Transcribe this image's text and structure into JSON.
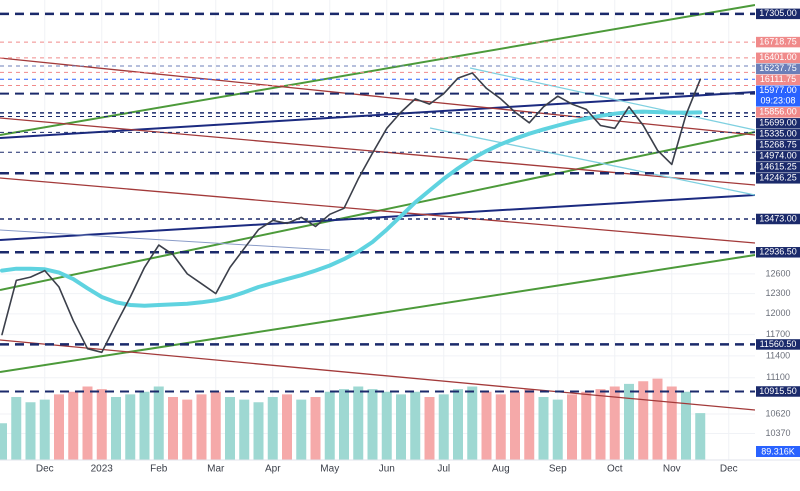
{
  "chart_data": {
    "type": "line",
    "log_scale": true,
    "grid": true,
    "ylim": [
      10040,
      17600
    ],
    "yticks": [
      10370,
      10620,
      11100,
      11400,
      11700,
      12000,
      12300,
      12600
    ],
    "categories": [
      null,
      null,
      null,
      "Dec",
      null,
      null,
      null,
      "2023",
      null,
      null,
      null,
      "Feb",
      null,
      null,
      null,
      "Mar",
      null,
      null,
      null,
      "Apr",
      null,
      null,
      null,
      "May",
      null,
      null,
      null,
      "Jun",
      null,
      null,
      null,
      "Jul",
      null,
      null,
      null,
      "Aug",
      null,
      null,
      null,
      "Sep",
      null,
      null,
      null,
      "Oct",
      null,
      null,
      null,
      "Nov",
      null,
      null,
      null,
      "Dec",
      null
    ],
    "series": [
      {
        "color": "#3b3f4a",
        "values": [
          11700,
          12500,
          12550,
          12650,
          12400,
          11900,
          11500,
          11450,
          11850,
          12250,
          12700,
          13050,
          12900,
          12600,
          12450,
          12300,
          12700,
          13000,
          13300,
          13450,
          13400,
          13500,
          13350,
          13550,
          13650,
          14150,
          14600,
          15050,
          15350,
          15600,
          15500,
          15700,
          16000,
          16100,
          15800,
          15600,
          15350,
          15150,
          15450,
          15650,
          15500,
          15400,
          15100,
          15050,
          15450,
          15100,
          14650,
          14400,
          15300,
          15977,
          null,
          null,
          null
        ]
      },
      {
        "color": "#5fd3e0",
        "values": [
          12650,
          12680,
          12680,
          12670,
          12620,
          12520,
          12380,
          12250,
          12170,
          12130,
          12120,
          12130,
          12140,
          12150,
          12170,
          12200,
          12250,
          12320,
          12400,
          12460,
          12520,
          12580,
          12650,
          12730,
          12830,
          12950,
          13100,
          13300,
          13520,
          13750,
          13950,
          14150,
          14330,
          14500,
          14640,
          14760,
          14860,
          14950,
          15030,
          15100,
          15170,
          15230,
          15280,
          15320,
          15350,
          15360,
          15350,
          15340,
          15340,
          15345,
          null,
          null,
          null
        ]
      }
    ],
    "volume": {
      "ylim": [
        0,
        200
      ],
      "up_color": "#9ed8d2",
      "down_color": "#f5a9a9",
      "current_label": "89.316K",
      "values": [
        70,
        120,
        110,
        115,
        125,
        130,
        140,
        135,
        120,
        125,
        130,
        140,
        120,
        115,
        125,
        130,
        120,
        115,
        110,
        120,
        125,
        115,
        120,
        130,
        135,
        140,
        135,
        130,
        125,
        130,
        120,
        125,
        135,
        140,
        130,
        125,
        130,
        135,
        120,
        115,
        125,
        130,
        135,
        140,
        145,
        150,
        155,
        140,
        130,
        89.316,
        null,
        null,
        null
      ]
    },
    "levels": [
      {
        "value": 17305,
        "label": "17305.00",
        "color": "#1b2a6b",
        "width": 2.5
      },
      {
        "value": 16718.75,
        "label": "16718.75",
        "color": "#f08a8a",
        "width": 1
      },
      {
        "value": 16401,
        "label": "16401.00",
        "color": "#f08a8a",
        "width": 1
      },
      {
        "value": 16237.75,
        "label": "16237.75",
        "color": "#6c7fb8",
        "width": 1
      },
      {
        "value": 16111.75,
        "label": "16111.75",
        "color": "#f08a8a",
        "width": 1
      },
      {
        "value": 15977,
        "label": "15977.00",
        "time": "09:23:08",
        "color": "#2962ff",
        "width": 1
      },
      {
        "value": 15856,
        "label": "15856.00",
        "color": "#f08a8a",
        "width": 1
      },
      {
        "value": 15699,
        "label": "15699.00",
        "color": "#1b2a6b",
        "width": 2
      },
      {
        "value": 15335,
        "label": "15335.00",
        "color": "#1b2a6b",
        "width": 1.5
      },
      {
        "value": 15268.75,
        "label": "15268.75",
        "color": "#1b2a6b",
        "width": 1
      },
      {
        "value": 14974,
        "label": "14974.00",
        "color": "#1b2a6b",
        "width": 1
      },
      {
        "value": 14615.25,
        "label": "14615.25",
        "color": "#1b2a6b",
        "width": 1
      },
      {
        "value": 14246.25,
        "label": "14246.25",
        "color": "#1b2a6b",
        "width": 2.5
      },
      {
        "value": 13473,
        "label": "13473.00",
        "color": "#1b2a6b",
        "width": 1.5
      },
      {
        "value": 12936.5,
        "label": "12936.50",
        "color": "#1b2a6b",
        "width": 2.5
      },
      {
        "value": 11560.5,
        "label": "11560.50",
        "color": "#1b2a6b",
        "width": 2.5
      },
      {
        "value": 10915.5,
        "label": "10915.50",
        "color": "#1b2a6b",
        "width": 2
      }
    ]
  }
}
